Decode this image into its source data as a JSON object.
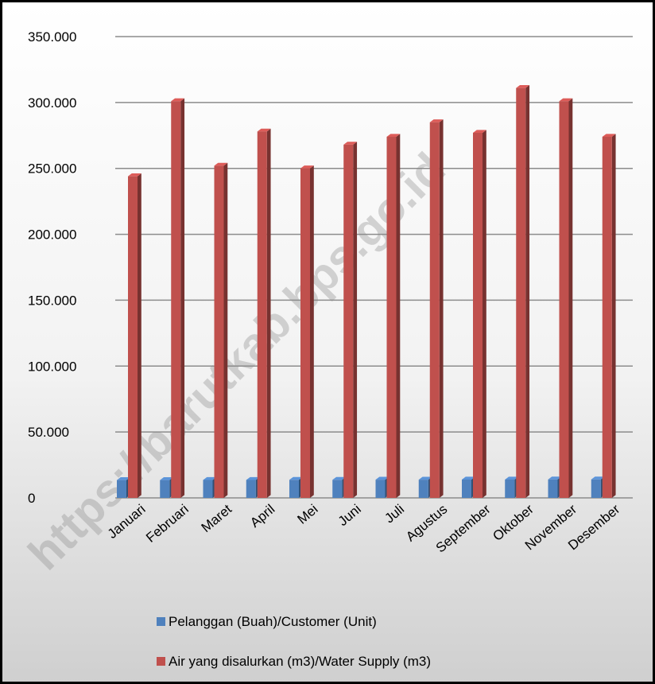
{
  "watermark": "https://barutkab.bps.go.id",
  "chart_data": {
    "type": "bar",
    "categories": [
      "Januari",
      "Februari",
      "Maret",
      "April",
      "Mei",
      "Juni",
      "Juli",
      "Agustus",
      "September",
      "Oktober",
      "November",
      "Desember"
    ],
    "series": [
      {
        "name": "Pelanggan (Buah)/Customer (Unit)",
        "color": "#4F81BD",
        "values": [
          13500,
          13500,
          13600,
          13600,
          13700,
          13700,
          13800,
          13800,
          13900,
          13900,
          14000,
          14000
        ]
      },
      {
        "name": "Air yang disalurkan (m3)/Water Supply (m3)",
        "color": "#C0504D",
        "values": [
          244000,
          301000,
          252000,
          278000,
          250000,
          268000,
          274000,
          285000,
          277000,
          311000,
          301000,
          274000
        ]
      }
    ],
    "yticks": [
      "0",
      "50.000",
      "100.000",
      "150.000",
      "200.000",
      "250.000",
      "300.000",
      "350.000"
    ],
    "ylim": [
      0,
      350000
    ],
    "grid": true,
    "legend_position": "bottom"
  }
}
